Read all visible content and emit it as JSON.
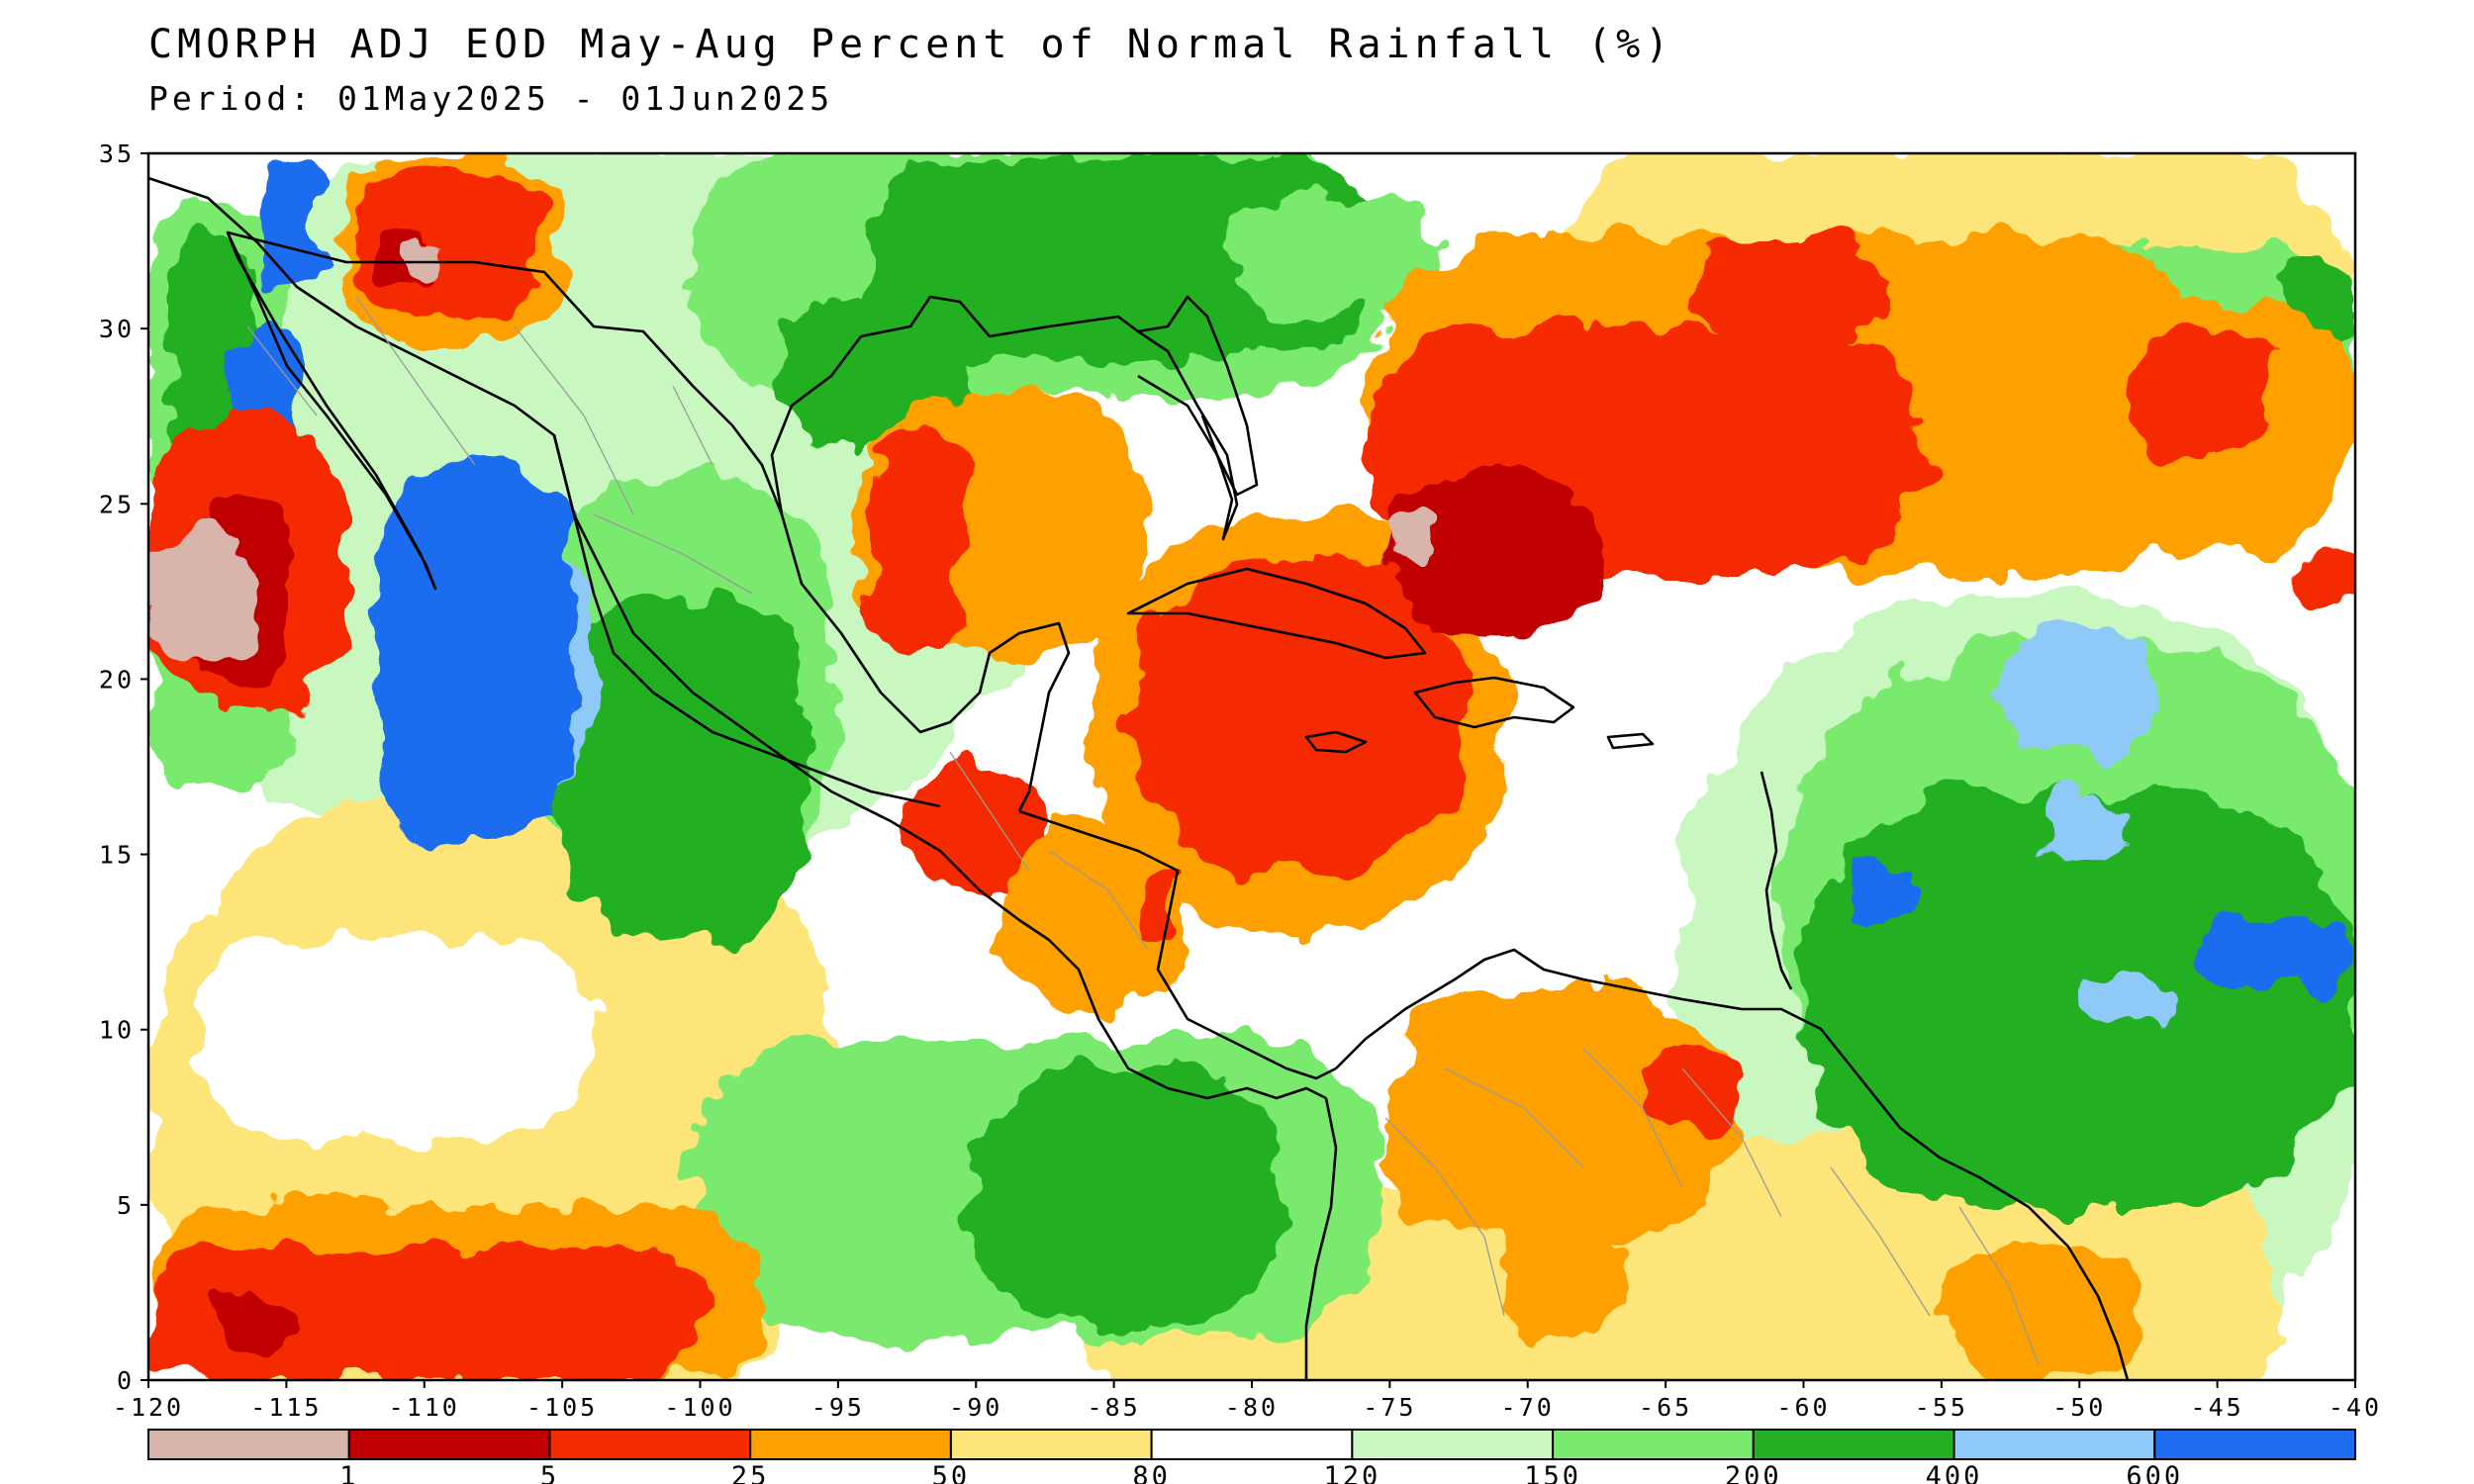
{
  "title": "CMORPH ADJ EOD May-Aug Percent of Normal Rainfall (%)",
  "period": "Period: 01May2025 - 01Jun2025",
  "map": {
    "lon_range": [
      -120,
      -40
    ],
    "lat_range": [
      0,
      35
    ],
    "lon_ticks": [
      "-120",
      "-115",
      "-110",
      "-105",
      "-100",
      "-95",
      "-90",
      "-85",
      "-80",
      "-75",
      "-70",
      "-65",
      "-60",
      "-55",
      "-50",
      "-45",
      "-40"
    ],
    "lat_ticks": [
      "0",
      "5",
      "10",
      "15",
      "20",
      "25",
      "30",
      "35"
    ]
  },
  "colorbar": {
    "colors": [
      "#d8b4ab",
      "#c00000",
      "#f52c00",
      "#fda000",
      "#fde57a",
      "#ffffff",
      "#c8f7c0",
      "#7aea6e",
      "#23b023",
      "#8ec9f7",
      "#1e6cf0"
    ],
    "labels": [
      "1",
      "5",
      "25",
      "50",
      "80",
      "120",
      "150",
      "200",
      "400",
      "600"
    ]
  },
  "palette": {
    "white": "#ffffff",
    "light_green": "#c8f7c0",
    "green": "#7aea6e",
    "dark_green": "#23b023",
    "light_blue": "#8ec9f7",
    "blue": "#1e6cf0",
    "yellow": "#fde57a",
    "orange": "#fda000",
    "red_orange": "#f52c00",
    "dark_red": "#c00000",
    "pink": "#d8b4ab",
    "coast": "#000000",
    "borders": "#9a9a9a"
  }
}
